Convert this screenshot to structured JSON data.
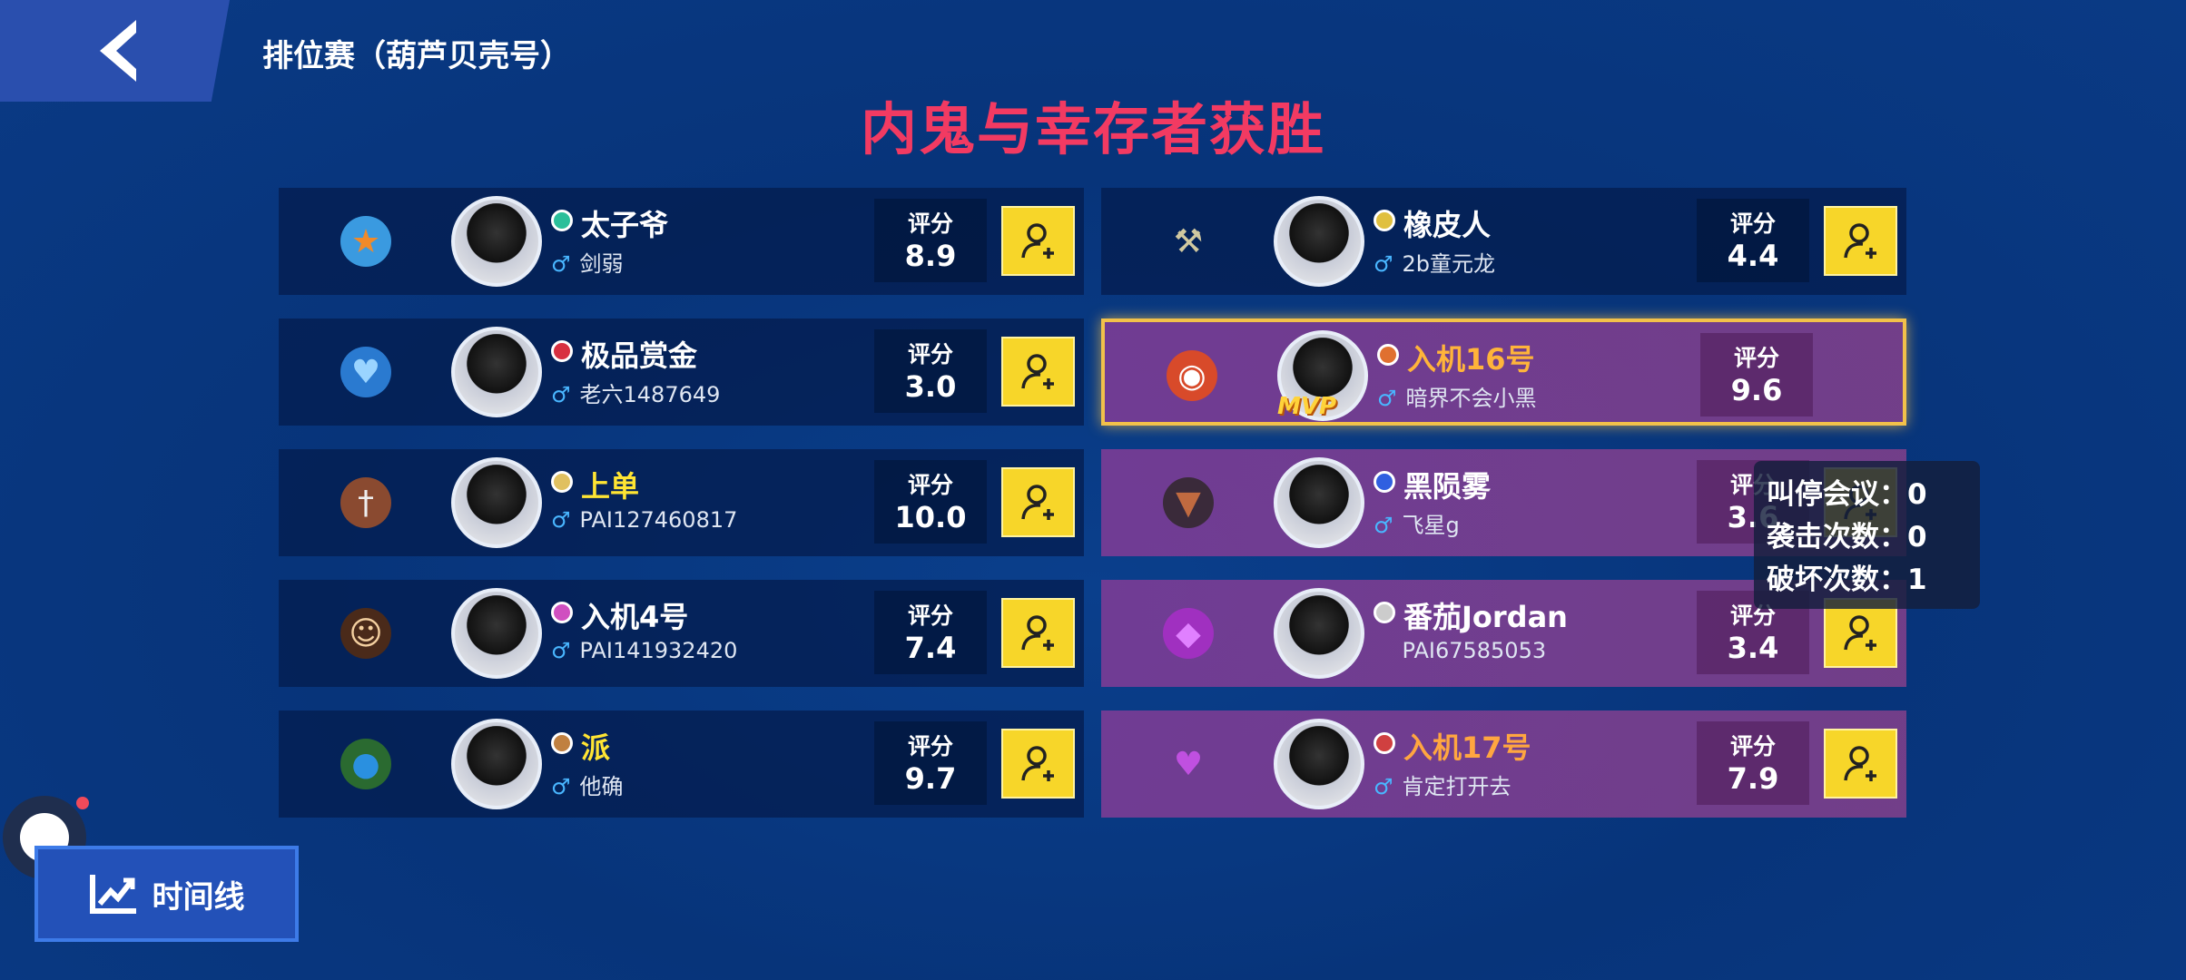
{
  "header": {
    "mode": "排位赛（葫芦贝壳号）",
    "result": "内鬼与幸存者获胜",
    "back_icon": "chevron-left-icon"
  },
  "score_label": "评分",
  "left_team": [
    {
      "role_icon": "police-badge-icon",
      "name": "太子爷",
      "sub": "剑弱",
      "score": "8.9",
      "name_color": "#ffffff",
      "rank_color": "#2bbf9a"
    },
    {
      "role_icon": "blue-chip-icon",
      "name": "极品赏金",
      "sub": "老六1487649",
      "score": "3.0",
      "name_color": "#ffffff",
      "rank_color": "#d83040"
    },
    {
      "role_icon": "sword-shield-icon",
      "name": "上单",
      "sub": "PAI127460817",
      "score": "10.0",
      "name_color": "#ffe533",
      "rank_color": "#e0c060"
    },
    {
      "role_icon": "detective-icon",
      "name": "入机4号",
      "sub": "PAI141932420",
      "score": "7.4",
      "name_color": "#ffffff",
      "rank_color": "#d050c0"
    },
    {
      "role_icon": "gourd-icon",
      "name": "派",
      "sub": "他确",
      "score": "9.7",
      "name_color": "#ffe533",
      "rank_color": "#c08040"
    }
  ],
  "right_team": [
    {
      "role_icon": "shovel-icon",
      "name": "橡皮人",
      "sub": "2b童元龙",
      "score": "4.4",
      "name_color": "#ffffff",
      "rank_color": "#e0c040",
      "purple": false
    },
    {
      "role_icon": "red-chip-icon",
      "name": "入机16号",
      "sub": "暗界不会小黑",
      "score": "9.6",
      "name_color": "#ffb43a",
      "rank_color": "#e07030",
      "purple": true,
      "mvp": true,
      "mvp_label": "MVP"
    },
    {
      "role_icon": "bat-icon",
      "name": "黑陨雾",
      "sub": "飞星g",
      "score": "3.6",
      "name_color": "#ffffff",
      "rank_color": "#3060e0",
      "purple": true
    },
    {
      "role_icon": "purple-chip-icon",
      "name": "番茄Jordan",
      "sub": "PAI67585053",
      "score": "3.4",
      "name_color": "#ffffff",
      "rank_color": "#cccccc",
      "purple": true,
      "no_gender": true
    },
    {
      "role_icon": "heart-icon",
      "name": "入机17号",
      "sub": "肯定打开去",
      "score": "7.9",
      "name_color": "#ffa640",
      "rank_color": "#d04040",
      "purple": true
    }
  ],
  "tooltip": [
    {
      "label": "叫停会议：",
      "value": "0"
    },
    {
      "label": "袭击次数：",
      "value": "0"
    },
    {
      "label": "破坏次数：",
      "value": "1"
    }
  ],
  "timeline_button": {
    "label": "时间线",
    "icon": "chart-line-icon"
  },
  "colors": {
    "result": "#f23a62",
    "add_button": "#f7d629",
    "mvp_border": "#f2c14a"
  }
}
